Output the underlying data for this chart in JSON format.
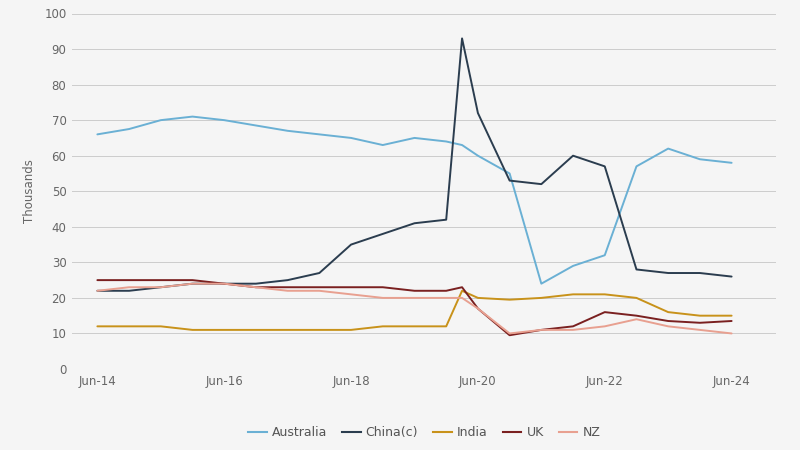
{
  "ylabel": "Thousands",
  "ylim": [
    0,
    100
  ],
  "yticks": [
    0,
    10,
    20,
    30,
    40,
    50,
    60,
    70,
    80,
    90,
    100
  ],
  "background_color": "#f5f5f5",
  "grid_color": "#cccccc",
  "series": {
    "Australia": {
      "color": "#6ab0d4",
      "x": [
        2014,
        2014.5,
        2015,
        2015.5,
        2016,
        2016.5,
        2017,
        2017.5,
        2018,
        2018.5,
        2019,
        2019.5,
        2019.75,
        2020,
        2020.5,
        2021,
        2021.5,
        2022,
        2022.5,
        2023,
        2023.5,
        2024
      ],
      "y": [
        66,
        67.5,
        70,
        71,
        70,
        68.5,
        67,
        66,
        65,
        63,
        65,
        64,
        63,
        60,
        55,
        24,
        29,
        32,
        57,
        62,
        59,
        58
      ]
    },
    "China(c)": {
      "color": "#2b3d4f",
      "x": [
        2014,
        2014.5,
        2015,
        2015.5,
        2016,
        2016.5,
        2017,
        2017.5,
        2018,
        2018.5,
        2019,
        2019.5,
        2019.75,
        2020,
        2020.5,
        2021,
        2021.5,
        2022,
        2022.5,
        2023,
        2023.5,
        2024
      ],
      "y": [
        22,
        22,
        23,
        24,
        24,
        24,
        25,
        27,
        35,
        38,
        41,
        42,
        93,
        72,
        53,
        52,
        60,
        57,
        28,
        27,
        27,
        26
      ]
    },
    "India": {
      "color": "#c8921a",
      "x": [
        2014,
        2014.5,
        2015,
        2015.5,
        2016,
        2016.5,
        2017,
        2017.5,
        2018,
        2018.5,
        2019,
        2019.5,
        2019.75,
        2020,
        2020.5,
        2021,
        2021.5,
        2022,
        2022.5,
        2023,
        2023.5,
        2024
      ],
      "y": [
        12,
        12,
        12,
        11,
        11,
        11,
        11,
        11,
        11,
        12,
        12,
        12,
        22,
        20,
        19.5,
        20,
        21,
        21,
        20,
        16,
        15,
        15
      ]
    },
    "UK": {
      "color": "#7a2020",
      "x": [
        2014,
        2014.5,
        2015,
        2015.5,
        2016,
        2016.5,
        2017,
        2017.5,
        2018,
        2018.5,
        2019,
        2019.5,
        2019.75,
        2020,
        2020.5,
        2021,
        2021.5,
        2022,
        2022.5,
        2023,
        2023.5,
        2024
      ],
      "y": [
        25,
        25,
        25,
        25,
        24,
        23,
        23,
        23,
        23,
        23,
        22,
        22,
        23,
        17,
        9.5,
        11,
        12,
        16,
        15,
        13.5,
        13,
        13.5
      ]
    },
    "NZ": {
      "color": "#e8a090",
      "x": [
        2014,
        2014.5,
        2015,
        2015.5,
        2016,
        2016.5,
        2017,
        2017.5,
        2018,
        2018.5,
        2019,
        2019.5,
        2019.75,
        2020,
        2020.5,
        2021,
        2021.5,
        2022,
        2022.5,
        2023,
        2023.5,
        2024
      ],
      "y": [
        22,
        23,
        23,
        24,
        24,
        23,
        22,
        22,
        21,
        20,
        20,
        20,
        20,
        17,
        10,
        11,
        11,
        12,
        14,
        12,
        11,
        10
      ]
    }
  },
  "xtick_positions": [
    2014,
    2016,
    2018,
    2020,
    2022,
    2024
  ],
  "xtick_labels": [
    "Jun-14",
    "Jun-16",
    "Jun-18",
    "Jun-20",
    "Jun-22",
    "Jun-24"
  ],
  "xlim": [
    2013.6,
    2024.7
  ],
  "legend_order": [
    "Australia",
    "China(c)",
    "India",
    "UK",
    "NZ"
  ]
}
